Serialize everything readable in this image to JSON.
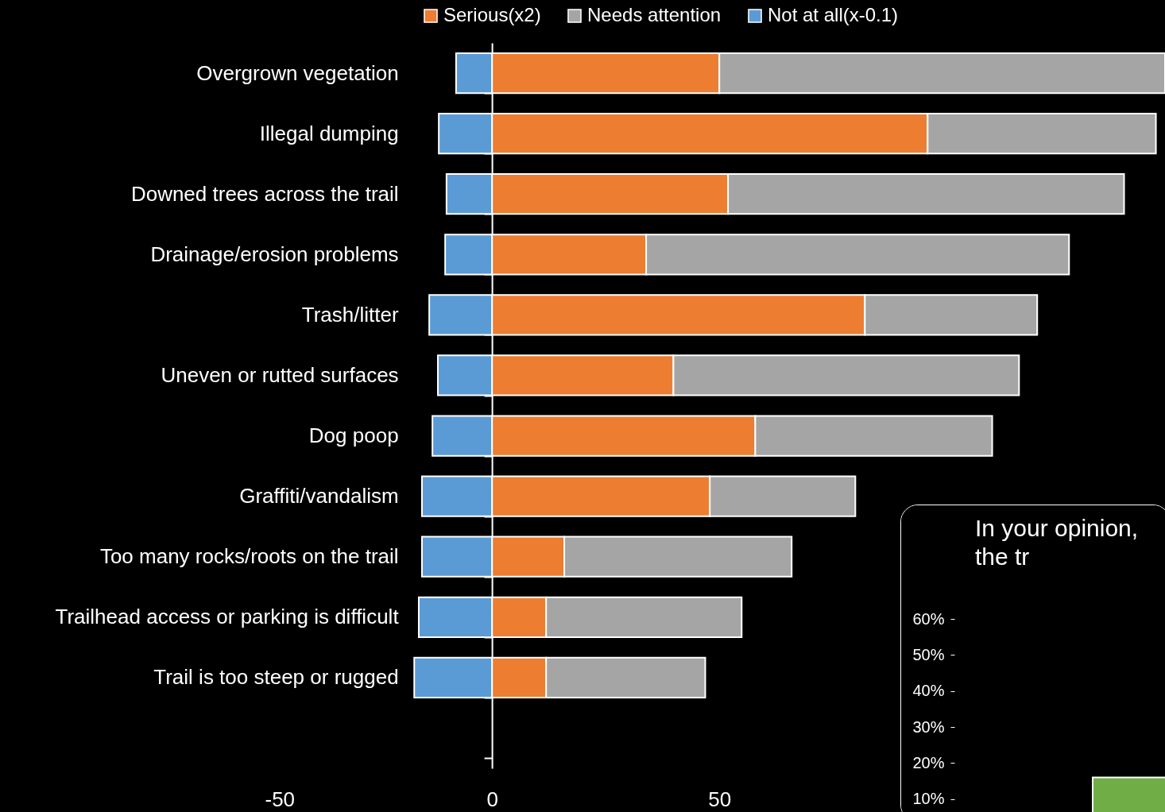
{
  "chart_data": [
    {
      "type": "bar",
      "orientation": "horizontal",
      "stacked": true,
      "legend": "top",
      "categories": [
        "Overgrown vegetation",
        "Illegal dumping",
        "Downed trees across the trail",
        "Drainage/erosion problems",
        "Trash/litter",
        "Uneven or rutted surfaces",
        "Dog poop",
        "Graffiti/vandalism",
        "Too many rocks/roots on the trail",
        "Trailhead  access or parking is difficult",
        "Trail is too steep or rugged",
        null
      ],
      "series": [
        {
          "name": "Serious(x2)",
          "color": "#ed7d31",
          "values": [
            50.0,
            95.8,
            51.9,
            33.9,
            82.0,
            39.9,
            57.9,
            47.9,
            15.9,
            11.9,
            11.9,
            null
          ]
        },
        {
          "name": "Needs attention",
          "color": "#a5a5a5",
          "values": [
            98,
            50.2,
            87.1,
            93.0,
            37.9,
            76.0,
            52.1,
            32.0,
            50.0,
            43.0,
            35.0,
            null
          ]
        },
        {
          "name": "Not at all(x-0.1)",
          "color": "#5b9bd5",
          "values": [
            -7.9,
            -11.7,
            -10.0,
            -10.3,
            -13.8,
            -11.9,
            -13.1,
            -15.4,
            -15.4,
            -16.1,
            -17.1,
            null
          ]
        }
      ],
      "xlim": [
        -50,
        148
      ],
      "xticks": [
        -50,
        0,
        50
      ]
    },
    {
      "type": "bar",
      "title": "In your opinion, the tr",
      "tick_labels": "y",
      "categories": [
        null
      ],
      "values": [
        16
      ],
      "colors": [
        "#70ad47"
      ],
      "ylim": [
        0,
        60
      ],
      "yticks": [
        {
          "value": 10,
          "label": "10%"
        },
        {
          "value": 20,
          "label": "20%"
        },
        {
          "value": 30,
          "label": "30%"
        },
        {
          "value": 40,
          "label": "40%"
        },
        {
          "value": 50,
          "label": "50%"
        },
        {
          "value": 60,
          "label": "60%"
        }
      ]
    }
  ]
}
